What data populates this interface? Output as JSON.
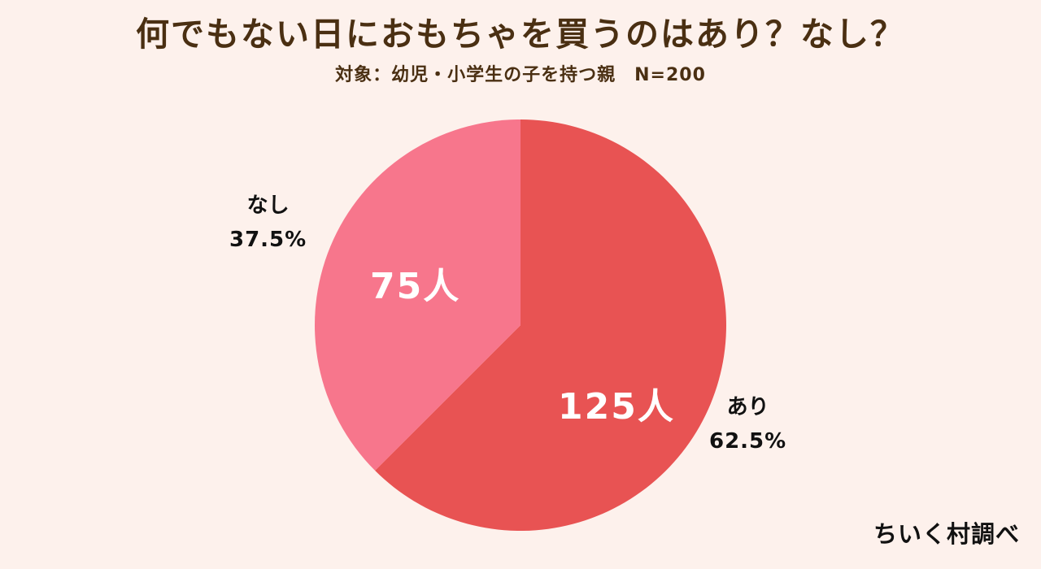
{
  "header": {
    "title": "何でもない日におもちゃを買うのはあり？なし？",
    "subtitle": "対象：幼児・小学生の子を持つ親　N=200"
  },
  "chart_data": {
    "type": "pie",
    "title": "何でもない日におもちゃを買うのはあり？なし？",
    "subtitle": "対象：幼児・小学生の子を持つ親　N=200",
    "slices": [
      {
        "label": "あり",
        "value": 125,
        "value_label": "125人",
        "percent": 62.5,
        "percent_label": "62.5%",
        "color": "#e85353"
      },
      {
        "label": "なし",
        "value": 75,
        "value_label": "75人",
        "percent": 37.5,
        "percent_label": "37.5%",
        "color": "#f7768c"
      }
    ],
    "start_angle": "12 o'clock",
    "direction": "clockwise"
  },
  "credit": "ちいく村調べ"
}
